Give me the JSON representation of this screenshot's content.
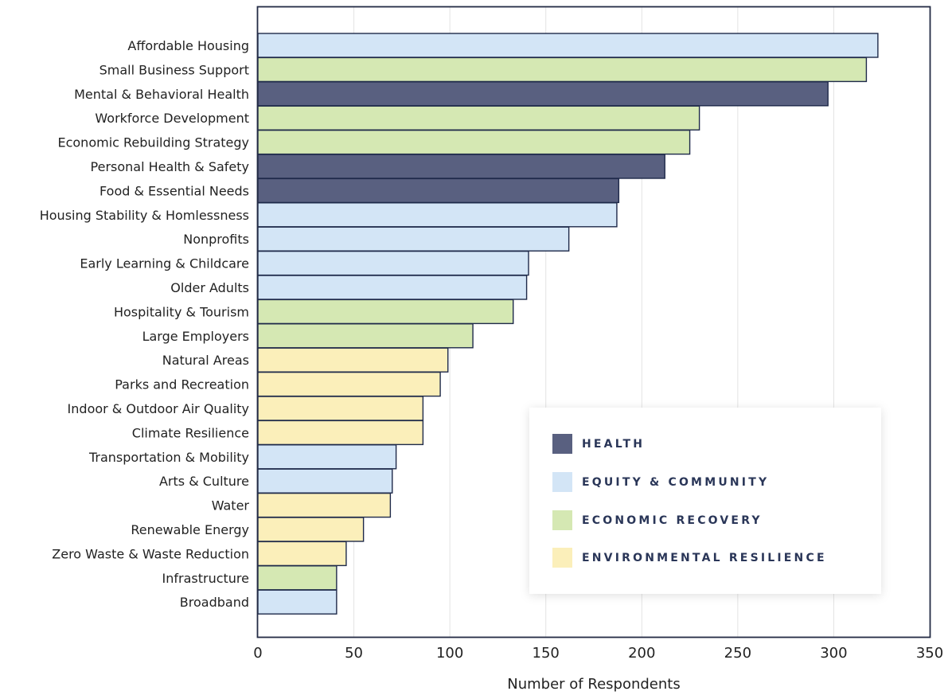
{
  "chart_data": {
    "type": "bar",
    "orientation": "horizontal",
    "title": "",
    "xlabel": "Number of Respondents",
    "ylabel": "",
    "xlim": [
      0,
      350
    ],
    "xticks": [
      0,
      50,
      100,
      150,
      200,
      250,
      300,
      350
    ],
    "grid": "vertical",
    "legend_position": "bottom-right",
    "colors": {
      "HEALTH": "#596080",
      "EQUITY & COMMUNITY": "#d3e5f6",
      "ECONOMIC RECOVERY": "#d5e8b3",
      "ENVIRONMENTAL RESILIENCE": "#fbefba"
    },
    "legend": [
      "HEALTH",
      "EQUITY & COMMUNITY",
      "ECONOMIC RECOVERY",
      "ENVIRONMENTAL RESILIENCE"
    ],
    "categories": [
      "Affordable Housing",
      "Small Business Support",
      "Mental & Behavioral Health",
      "Workforce Development",
      "Economic Rebuilding Strategy",
      "Personal Health & Safety",
      "Food & Essential Needs",
      "Housing Stability & Homlessness",
      "Nonprofits",
      "Early Learning & Childcare",
      "Older Adults",
      "Hospitality & Tourism",
      "Large Employers",
      "Natural Areas",
      "Parks and Recreation",
      "Indoor & Outdoor Air Quality",
      "Climate Resilience",
      "Transportation & Mobility",
      "Arts & Culture",
      "Water",
      "Renewable Energy",
      "Zero Waste & Waste Reduction",
      "Infrastructure",
      "Broadband"
    ],
    "values": [
      323,
      317,
      297,
      230,
      225,
      212,
      188,
      187,
      162,
      141,
      140,
      133,
      112,
      99,
      95,
      86,
      86,
      72,
      70,
      69,
      55,
      46,
      41,
      41
    ],
    "groups": [
      "EQUITY & COMMUNITY",
      "ECONOMIC RECOVERY",
      "HEALTH",
      "ECONOMIC RECOVERY",
      "ECONOMIC RECOVERY",
      "HEALTH",
      "HEALTH",
      "EQUITY & COMMUNITY",
      "EQUITY & COMMUNITY",
      "EQUITY & COMMUNITY",
      "EQUITY & COMMUNITY",
      "ECONOMIC RECOVERY",
      "ECONOMIC RECOVERY",
      "ENVIRONMENTAL RESILIENCE",
      "ENVIRONMENTAL RESILIENCE",
      "ENVIRONMENTAL RESILIENCE",
      "ENVIRONMENTAL RESILIENCE",
      "EQUITY & COMMUNITY",
      "EQUITY & COMMUNITY",
      "ENVIRONMENTAL RESILIENCE",
      "ENVIRONMENTAL RESILIENCE",
      "ENVIRONMENTAL RESILIENCE",
      "ECONOMIC RECOVERY",
      "EQUITY & COMMUNITY"
    ]
  }
}
